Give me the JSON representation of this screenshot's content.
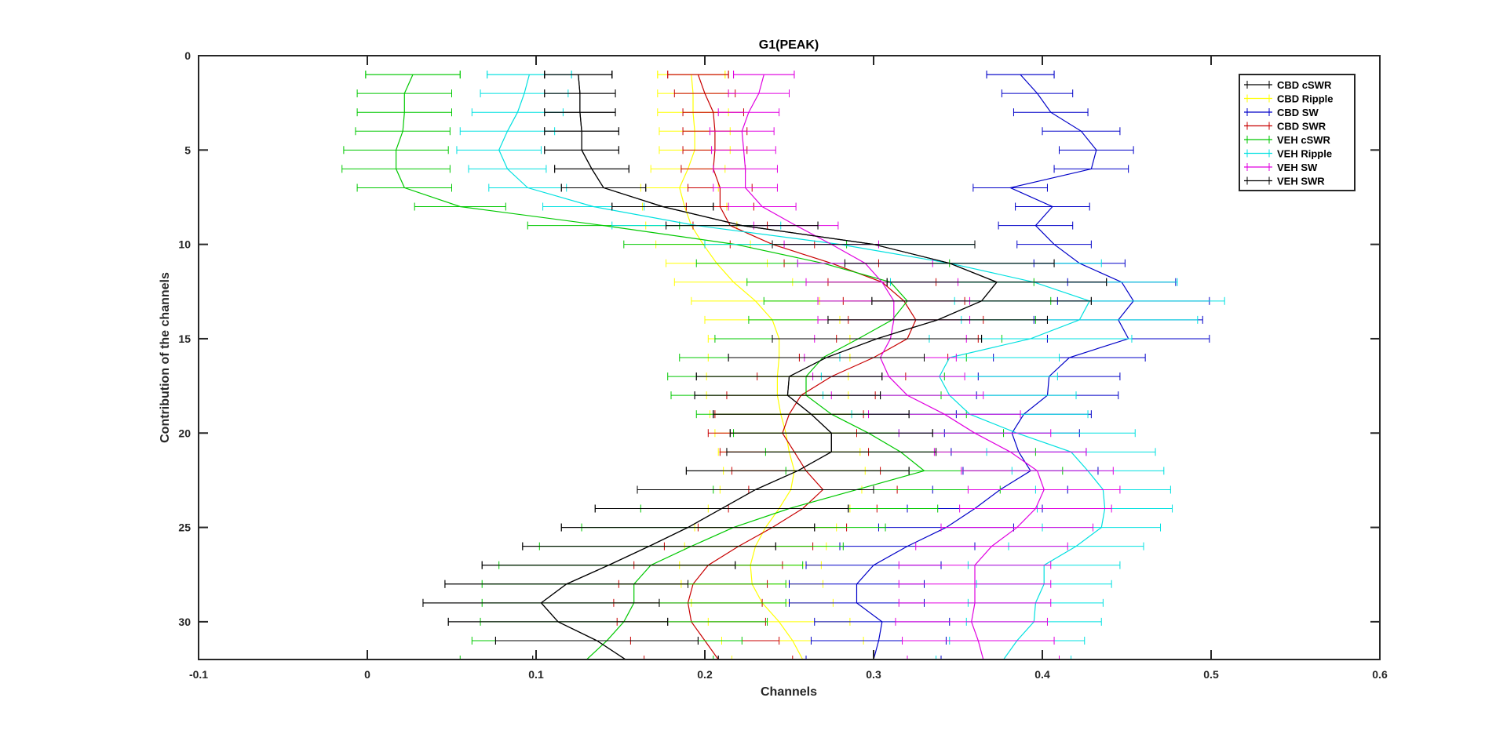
{
  "chart_data": {
    "type": "line",
    "title": "G1(PEAK)",
    "xlabel": "Channels",
    "ylabel": "Contribution of the channels",
    "xlim": [
      -0.1,
      0.6
    ],
    "ylim": [
      0,
      32
    ],
    "y_reversed": true,
    "grid": false,
    "legend_position": "top-right",
    "x_ticks": [
      "-0.1",
      "0",
      "0.1",
      "0.2",
      "0.3",
      "0.4",
      "0.5",
      "0.6"
    ],
    "x_tick_values": [
      -0.1,
      0,
      0.1,
      0.2,
      0.3,
      0.4,
      0.5,
      0.6
    ],
    "y_ticks": [
      "0",
      "5",
      "10",
      "15",
      "20",
      "25",
      "30"
    ],
    "y_tick_values": [
      0,
      5,
      10,
      15,
      20,
      25,
      30
    ],
    "series": [
      {
        "name": "CBD cSWR",
        "color": "#000000",
        "x": [
          0.125,
          0.125,
          0.126,
          0.126,
          0.127,
          0.127,
          0.133,
          0.14,
          0.175,
          0.222,
          0.3,
          0.345,
          0.373,
          0.364,
          0.338,
          0.302,
          0.272,
          0.25,
          0.249,
          0.263,
          0.275,
          0.275,
          0.255,
          0.23,
          0.21,
          0.19,
          0.167,
          0.143,
          0.118,
          0.103,
          0.113,
          0.136,
          0.153
        ],
        "err": [
          0.02,
          0.02,
          0.021,
          0.021,
          0.022,
          0.022,
          0.022,
          0.025,
          0.03,
          0.045,
          0.06,
          0.062,
          0.065,
          0.065,
          0.065,
          0.062,
          0.058,
          0.055,
          0.055,
          0.058,
          0.06,
          0.062,
          0.066,
          0.07,
          0.075,
          0.075,
          0.075,
          0.075,
          0.072,
          0.07,
          0.065,
          0.06,
          0.055
        ]
      },
      {
        "name": "CBD Ripple",
        "color": "#ffff00",
        "x": [
          0.192,
          0.192,
          0.193,
          0.193,
          0.194,
          0.194,
          0.19,
          0.185,
          0.188,
          0.192,
          0.199,
          0.207,
          0.217,
          0.23,
          0.24,
          0.244,
          0.244,
          0.243,
          0.243,
          0.245,
          0.248,
          0.25,
          0.253,
          0.251,
          0.244,
          0.236,
          0.23,
          0.227,
          0.228,
          0.234,
          0.244,
          0.252,
          0.258
        ],
        "err": [
          0.02,
          0.02,
          0.021,
          0.021,
          0.021,
          0.021,
          0.022,
          0.023,
          0.025,
          0.027,
          0.028,
          0.03,
          0.035,
          0.038,
          0.04,
          0.042,
          0.042,
          0.042,
          0.042,
          0.042,
          0.042,
          0.042,
          0.042,
          0.042,
          0.042,
          0.042,
          0.042,
          0.042,
          0.042,
          0.042,
          0.042,
          0.042,
          0.042
        ]
      },
      {
        "name": "CBD SW",
        "color": "#0000c8",
        "x": [
          0.387,
          0.387,
          0.397,
          0.405,
          0.423,
          0.432,
          0.429,
          0.381,
          0.406,
          0.396,
          0.407,
          0.422,
          0.447,
          0.454,
          0.445,
          0.451,
          0.416,
          0.404,
          0.403,
          0.389,
          0.382,
          0.386,
          0.393,
          0.375,
          0.36,
          0.343,
          0.32,
          0.3,
          0.29,
          0.29,
          0.305,
          0.303,
          0.3
        ],
        "err": [
          0.02,
          0.02,
          0.021,
          0.022,
          0.023,
          0.022,
          0.022,
          0.022,
          0.022,
          0.022,
          0.022,
          0.027,
          0.032,
          0.045,
          0.05,
          0.048,
          0.045,
          0.042,
          0.042,
          0.04,
          0.04,
          0.04,
          0.04,
          0.04,
          0.04,
          0.04,
          0.04,
          0.04,
          0.04,
          0.04,
          0.04,
          0.04,
          0.04
        ]
      },
      {
        "name": "CBD SWR",
        "color": "#c80000",
        "x": [
          0.196,
          0.196,
          0.2,
          0.205,
          0.206,
          0.206,
          0.205,
          0.209,
          0.209,
          0.215,
          0.24,
          0.275,
          0.305,
          0.318,
          0.325,
          0.32,
          0.3,
          0.275,
          0.257,
          0.25,
          0.246,
          0.253,
          0.26,
          0.27,
          0.258,
          0.24,
          0.22,
          0.202,
          0.193,
          0.19,
          0.192,
          0.2,
          0.208
        ],
        "err": [
          0.018,
          0.018,
          0.018,
          0.018,
          0.019,
          0.019,
          0.019,
          0.019,
          0.02,
          0.022,
          0.025,
          0.028,
          0.032,
          0.036,
          0.04,
          0.042,
          0.044,
          0.044,
          0.044,
          0.044,
          0.044,
          0.044,
          0.044,
          0.044,
          0.044,
          0.044,
          0.044,
          0.044,
          0.044,
          0.044,
          0.044,
          0.044,
          0.044
        ]
      },
      {
        "name": "VEH cSWR",
        "color": "#00c800",
        "x": [
          0.027,
          0.027,
          0.022,
          0.022,
          0.021,
          0.017,
          0.017,
          0.022,
          0.055,
          0.14,
          0.218,
          0.27,
          0.31,
          0.32,
          0.311,
          0.291,
          0.27,
          0.26,
          0.26,
          0.275,
          0.297,
          0.316,
          0.33,
          0.29,
          0.25,
          0.217,
          0.192,
          0.168,
          0.158,
          0.158,
          0.152,
          0.142,
          0.13
        ],
        "err": [
          0.028,
          0.028,
          0.028,
          0.028,
          0.028,
          0.031,
          0.032,
          0.028,
          0.027,
          0.045,
          0.066,
          0.075,
          0.085,
          0.085,
          0.085,
          0.085,
          0.085,
          0.082,
          0.08,
          0.08,
          0.08,
          0.08,
          0.082,
          0.085,
          0.088,
          0.09,
          0.09,
          0.09,
          0.09,
          0.09,
          0.085,
          0.08,
          0.075
        ]
      },
      {
        "name": "VEH Ripple",
        "color": "#00e0e0",
        "x": [
          0.096,
          0.096,
          0.093,
          0.089,
          0.083,
          0.078,
          0.083,
          0.095,
          0.134,
          0.195,
          0.28,
          0.345,
          0.395,
          0.428,
          0.422,
          0.393,
          0.345,
          0.339,
          0.345,
          0.357,
          0.385,
          0.417,
          0.427,
          0.436,
          0.437,
          0.435,
          0.42,
          0.401,
          0.401,
          0.396,
          0.395,
          0.385,
          0.377
        ],
        "err": [
          0.025,
          0.025,
          0.026,
          0.027,
          0.028,
          0.025,
          0.023,
          0.023,
          0.03,
          0.05,
          0.08,
          0.09,
          0.085,
          0.08,
          0.07,
          0.06,
          0.065,
          0.07,
          0.075,
          0.07,
          0.07,
          0.05,
          0.045,
          0.04,
          0.04,
          0.035,
          0.04,
          0.045,
          0.04,
          0.04,
          0.04,
          0.04,
          0.04
        ]
      },
      {
        "name": "VEH SW",
        "color": "#e000e0",
        "x": [
          0.235,
          0.235,
          0.232,
          0.226,
          0.222,
          0.223,
          0.224,
          0.224,
          0.234,
          0.254,
          0.275,
          0.295,
          0.305,
          0.312,
          0.312,
          0.31,
          0.304,
          0.309,
          0.32,
          0.342,
          0.36,
          0.381,
          0.397,
          0.401,
          0.396,
          0.385,
          0.37,
          0.36,
          0.36,
          0.36,
          0.358,
          0.362,
          0.365
        ],
        "err": [
          0.018,
          0.018,
          0.018,
          0.018,
          0.019,
          0.019,
          0.019,
          0.019,
          0.02,
          0.025,
          0.028,
          0.04,
          0.045,
          0.045,
          0.045,
          0.045,
          0.045,
          0.045,
          0.045,
          0.045,
          0.045,
          0.045,
          0.045,
          0.045,
          0.045,
          0.045,
          0.045,
          0.045,
          0.045,
          0.045,
          0.045,
          0.045,
          0.045
        ]
      },
      {
        "name": "VEH SWR",
        "color": "#000000",
        "x": [
          0.125,
          0.125,
          0.126,
          0.126,
          0.127,
          0.127,
          0.133,
          0.14,
          0.175,
          0.222,
          0.3,
          0.345,
          0.373,
          0.364,
          0.338,
          0.302,
          0.272,
          0.25,
          0.249,
          0.263,
          0.275,
          0.275,
          0.255,
          0.23,
          0.21,
          0.19,
          0.167,
          0.143,
          0.118,
          0.103,
          0.113,
          0.136,
          0.153
        ],
        "err": [
          0.02,
          0.02,
          0.021,
          0.021,
          0.022,
          0.022,
          0.022,
          0.025,
          0.03,
          0.045,
          0.06,
          0.062,
          0.065,
          0.065,
          0.065,
          0.062,
          0.058,
          0.055,
          0.055,
          0.058,
          0.06,
          0.062,
          0.066,
          0.07,
          0.075,
          0.075,
          0.075,
          0.075,
          0.072,
          0.07,
          0.065,
          0.06,
          0.055
        ]
      }
    ],
    "y_values": [
      1,
      1,
      2,
      3,
      4,
      5,
      6,
      7,
      8,
      9,
      10,
      11,
      12,
      13,
      14,
      15,
      16,
      17,
      18,
      19,
      20,
      21,
      22,
      23,
      24,
      25,
      26,
      27,
      28,
      29,
      30,
      31,
      32
    ]
  }
}
